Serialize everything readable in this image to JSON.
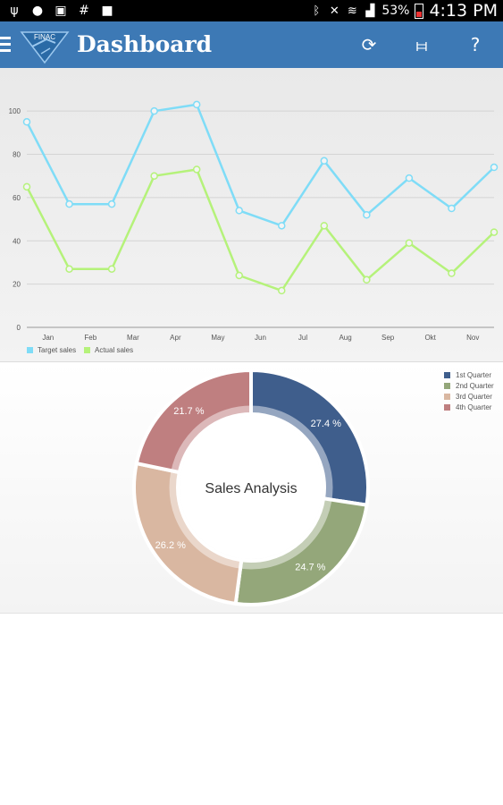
{
  "status_bar": {
    "left_icons": [
      "usb-icon",
      "location-icon",
      "image-icon",
      "hash-icon",
      "briefcase-icon"
    ],
    "battery_percent": "53%",
    "time": "4:13 PM"
  },
  "app_bar": {
    "logo_text": "FINAC",
    "title": "Dashboard",
    "actions": [
      "refresh-icon",
      "settings-sliders-icon",
      "help-icon"
    ],
    "help_glyph": "?",
    "color": "#3d79b5"
  },
  "line_chart": {
    "chart_data": {
      "type": "line",
      "categories": [
        "Jan",
        "Feb",
        "Mar",
        "Apr",
        "May",
        "Jun",
        "Jul",
        "Aug",
        "Sep",
        "Okt",
        "Nov"
      ],
      "x_labels": [
        {
          "label": "Jan",
          "at": 0.5
        },
        {
          "label": "Feb",
          "at": 1.5
        },
        {
          "label": "Mar",
          "at": 2.5
        },
        {
          "label": "Apr",
          "at": 3.5
        },
        {
          "label": "May",
          "at": 4.5
        },
        {
          "label": "Jun",
          "at": 5.5
        },
        {
          "label": "Jul",
          "at": 6.5
        },
        {
          "label": "Aug",
          "at": 7.5
        },
        {
          "label": "Sep",
          "at": 8.5
        },
        {
          "label": "Okt",
          "at": 9.5
        },
        {
          "label": "Nov",
          "at": 10.5
        }
      ],
      "series": [
        {
          "name": "Target sales",
          "color": "#7fdcf7",
          "x": [
            0,
            1,
            2,
            3,
            4,
            5,
            6,
            7,
            8,
            9,
            10,
            11
          ],
          "values": [
            95,
            57,
            57,
            100,
            103,
            54,
            47,
            77,
            52,
            69,
            55,
            74
          ]
        },
        {
          "name": "Actual sales",
          "color": "#b5f27a",
          "x": [
            0,
            1,
            2,
            3,
            4,
            5,
            6,
            7,
            8,
            9,
            10,
            11
          ],
          "values": [
            65,
            27,
            27,
            70,
            73,
            24,
            17,
            47,
            22,
            39,
            25,
            44
          ]
        }
      ],
      "y_ticks": [
        0,
        20,
        40,
        60,
        80,
        100
      ],
      "ylim": [
        0,
        110
      ],
      "xlim": [
        0,
        11
      ],
      "grid": true,
      "legend": "bottom-left"
    }
  },
  "donut_chart": {
    "chart_data": {
      "type": "pie",
      "title": "Sales Analysis",
      "categories": [
        "1st Quarter",
        "2nd Quarter",
        "3rd Quarter",
        "4th Quarter"
      ],
      "values": [
        27.4,
        24.7,
        26.2,
        21.7
      ],
      "labels": [
        "27.4 %",
        "24.7 %",
        "26.2 %",
        "21.7 %"
      ],
      "colors": [
        "#3f5e8c",
        "#94a77a",
        "#d9b7a1",
        "#bf7f80"
      ],
      "legend": "top-right"
    }
  }
}
